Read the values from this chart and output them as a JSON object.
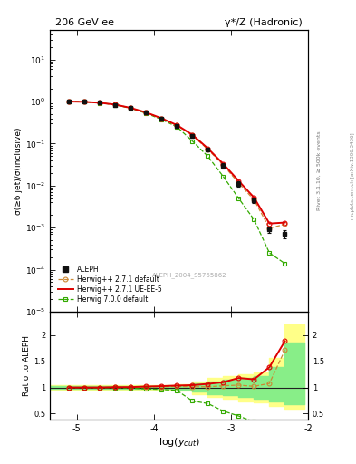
{
  "title_left": "206 GeV ee",
  "title_right": "γ*/Z (Hadronic)",
  "ylabel_main": "σ(≥6 jet)/σ(inclusive)",
  "ylabel_ratio": "Ratio to ALEPH",
  "xlabel": "log(y_{cut})",
  "right_label_top": "Rivet 3.1.10, ≥ 500k events",
  "right_label_bot": "mcplots.cern.ch [arXiv:1306.3436]",
  "watermark": "ALEPH_2004_S5765862",
  "xlim": [
    -5.35,
    -2.05
  ],
  "ylim_main": [
    1e-05,
    50
  ],
  "ylim_ratio": [
    0.38,
    2.45
  ],
  "aleph_x": [
    -5.1,
    -4.9,
    -4.7,
    -4.5,
    -4.3,
    -4.1,
    -3.9,
    -3.7,
    -3.5,
    -3.3,
    -3.1,
    -2.9,
    -2.7,
    -2.5,
    -2.3
  ],
  "aleph_y": [
    1.0,
    0.985,
    0.935,
    0.84,
    0.7,
    0.54,
    0.39,
    0.265,
    0.155,
    0.072,
    0.03,
    0.011,
    0.0045,
    0.0009,
    0.0007
  ],
  "aleph_yerr": [
    0.01,
    0.01,
    0.015,
    0.02,
    0.02,
    0.02,
    0.02,
    0.015,
    0.012,
    0.008,
    0.004,
    0.0015,
    0.0006,
    0.00015,
    0.00015
  ],
  "hw271_x": [
    -5.1,
    -4.9,
    -4.7,
    -4.5,
    -4.3,
    -4.1,
    -3.9,
    -3.7,
    -3.5,
    -3.3,
    -3.1,
    -2.9,
    -2.7,
    -2.5,
    -2.3
  ],
  "hw271_y": [
    1.0,
    0.985,
    0.935,
    0.845,
    0.705,
    0.545,
    0.395,
    0.27,
    0.157,
    0.073,
    0.031,
    0.0115,
    0.0046,
    0.00097,
    0.0012
  ],
  "hw271ue_x": [
    -5.1,
    -4.9,
    -4.7,
    -4.5,
    -4.3,
    -4.1,
    -3.9,
    -3.7,
    -3.5,
    -3.3,
    -3.1,
    -2.9,
    -2.7,
    -2.5,
    -2.3
  ],
  "hw271ue_y": [
    1.0,
    0.985,
    0.935,
    0.845,
    0.705,
    0.55,
    0.4,
    0.275,
    0.162,
    0.077,
    0.033,
    0.013,
    0.0052,
    0.00125,
    0.00132
  ],
  "hw700_x": [
    -5.1,
    -4.9,
    -4.7,
    -4.5,
    -4.3,
    -4.1,
    -3.9,
    -3.7,
    -3.5,
    -3.3,
    -3.1,
    -2.9,
    -2.7,
    -2.5,
    -2.3
  ],
  "hw700_y": [
    1.0,
    0.985,
    0.93,
    0.835,
    0.69,
    0.525,
    0.375,
    0.25,
    0.115,
    0.05,
    0.0165,
    0.005,
    0.00155,
    0.00025,
    0.00014
  ],
  "ratio_hw271_y": [
    1.0,
    1.0,
    1.0,
    1.006,
    1.007,
    1.009,
    1.013,
    1.019,
    1.013,
    1.014,
    1.033,
    1.045,
    1.022,
    1.078,
    1.714
  ],
  "ratio_hw271ue_y": [
    1.0,
    1.0,
    1.0,
    1.006,
    1.007,
    1.019,
    1.026,
    1.038,
    1.045,
    1.069,
    1.1,
    1.182,
    1.156,
    1.389,
    1.886
  ],
  "ratio_hw700_y": [
    1.0,
    1.0,
    0.995,
    0.994,
    0.986,
    0.972,
    0.962,
    0.943,
    0.742,
    0.694,
    0.55,
    0.455,
    0.344,
    0.278,
    0.2
  ],
  "band_x": [
    -5.35,
    -5.1,
    -4.9,
    -4.7,
    -4.5,
    -4.3,
    -4.1,
    -3.9,
    -3.7,
    -3.5,
    -3.3,
    -3.1,
    -2.9,
    -2.7,
    -2.5,
    -2.3,
    -2.05
  ],
  "band_yellow_lo": [
    0.96,
    0.96,
    0.96,
    0.96,
    0.96,
    0.95,
    0.95,
    0.95,
    0.94,
    0.88,
    0.82,
    0.78,
    0.74,
    0.71,
    0.65,
    0.6,
    0.6
  ],
  "band_yellow_hi": [
    1.04,
    1.04,
    1.04,
    1.04,
    1.04,
    1.05,
    1.05,
    1.05,
    1.06,
    1.12,
    1.18,
    1.22,
    1.26,
    1.29,
    1.56,
    2.2,
    2.2
  ],
  "band_green_lo": [
    0.975,
    0.975,
    0.975,
    0.975,
    0.975,
    0.972,
    0.972,
    0.972,
    0.966,
    0.92,
    0.88,
    0.85,
    0.82,
    0.79,
    0.73,
    0.68,
    0.68
  ],
  "band_green_hi": [
    1.025,
    1.025,
    1.025,
    1.025,
    1.025,
    1.028,
    1.028,
    1.028,
    1.034,
    1.08,
    1.12,
    1.15,
    1.18,
    1.21,
    1.39,
    1.86,
    1.86
  ],
  "color_aleph": "#111111",
  "color_hw271": "#cc8833",
  "color_hw271ue": "#dd0000",
  "color_hw700": "#33aa00",
  "color_band_yellow": "#ffff88",
  "color_band_green": "#88ee88"
}
